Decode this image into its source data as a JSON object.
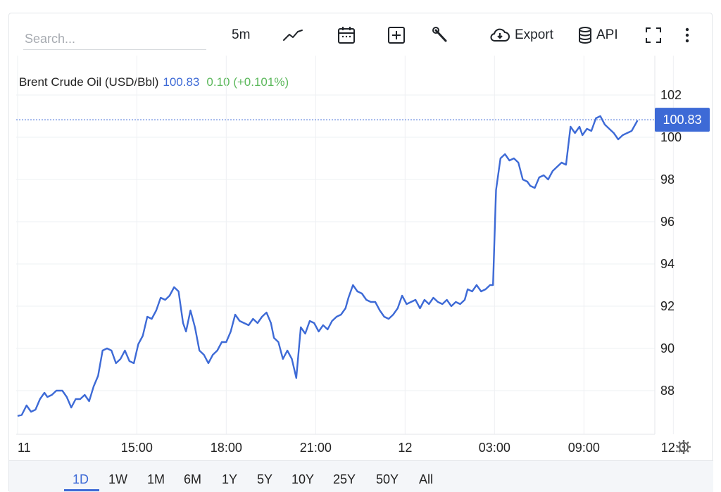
{
  "toolbar": {
    "search_placeholder": "Search...",
    "interval": "5m",
    "export_label": "Export",
    "api_label": "API",
    "icons": [
      "line-chart-icon",
      "calendar-icon",
      "add-box-icon",
      "wrench-icon",
      "cloud-download-icon",
      "database-icon",
      "fullscreen-icon",
      "more-vertical-icon"
    ]
  },
  "legend": {
    "name": "Brent Crude Oil (USD/Bbl)",
    "value": "100.83",
    "change": "0.10 (+0.101%)"
  },
  "price_tag": "100.83",
  "ranges": [
    "1D",
    "1W",
    "1M",
    "6M",
    "1Y",
    "5Y",
    "10Y",
    "25Y",
    "50Y",
    "All"
  ],
  "active_range": "1D",
  "colors": {
    "line": "#3d6ad6",
    "positive": "#5cb85c",
    "grid": "#eef0f3"
  },
  "chart_data": {
    "type": "line",
    "title": "Brent Crude Oil (USD/Bbl)",
    "ylim": [
      86,
      104
    ],
    "y_ticks": [
      88,
      90,
      92,
      94,
      96,
      98,
      100,
      102
    ],
    "x_ticks": [
      {
        "t": 0,
        "label": "11"
      },
      {
        "t": 4,
        "label": "15:00"
      },
      {
        "t": 7,
        "label": "18:00"
      },
      {
        "t": 10,
        "label": "21:00"
      },
      {
        "t": 13,
        "label": "12"
      },
      {
        "t": 16,
        "label": "03:00"
      },
      {
        "t": 19,
        "label": "09:00"
      },
      {
        "t": 22,
        "label": "12:0"
      }
    ],
    "last_value": 100.83,
    "series": [
      {
        "values": [
          [
            0.0,
            86.8
          ],
          [
            0.14,
            86.85
          ],
          [
            0.3,
            87.3
          ],
          [
            0.45,
            87.0
          ],
          [
            0.6,
            87.1
          ],
          [
            0.75,
            87.6
          ],
          [
            0.9,
            87.9
          ],
          [
            1.0,
            87.7
          ],
          [
            1.15,
            87.8
          ],
          [
            1.3,
            88.0
          ],
          [
            1.5,
            88.0
          ],
          [
            1.65,
            87.7
          ],
          [
            1.8,
            87.2
          ],
          [
            1.95,
            87.6
          ],
          [
            2.1,
            87.6
          ],
          [
            2.25,
            87.8
          ],
          [
            2.4,
            87.5
          ],
          [
            2.55,
            88.2
          ],
          [
            2.7,
            88.7
          ],
          [
            2.85,
            89.9
          ],
          [
            3.0,
            90.0
          ],
          [
            3.15,
            89.9
          ],
          [
            3.3,
            89.3
          ],
          [
            3.45,
            89.5
          ],
          [
            3.6,
            89.9
          ],
          [
            3.75,
            89.4
          ],
          [
            3.9,
            89.3
          ],
          [
            4.05,
            90.2
          ],
          [
            4.2,
            90.6
          ],
          [
            4.35,
            91.5
          ],
          [
            4.5,
            91.4
          ],
          [
            4.65,
            91.8
          ],
          [
            4.8,
            92.4
          ],
          [
            4.95,
            92.3
          ],
          [
            5.1,
            92.5
          ],
          [
            5.25,
            92.9
          ],
          [
            5.4,
            92.7
          ],
          [
            5.55,
            91.2
          ],
          [
            5.65,
            90.8
          ],
          [
            5.8,
            91.8
          ],
          [
            5.95,
            91.0
          ],
          [
            6.1,
            89.9
          ],
          [
            6.25,
            89.7
          ],
          [
            6.4,
            89.3
          ],
          [
            6.55,
            89.7
          ],
          [
            6.7,
            89.9
          ],
          [
            6.85,
            90.3
          ],
          [
            7.0,
            90.3
          ],
          [
            7.15,
            90.8
          ],
          [
            7.3,
            91.6
          ],
          [
            7.45,
            91.3
          ],
          [
            7.6,
            91.2
          ],
          [
            7.75,
            91.1
          ],
          [
            7.9,
            91.4
          ],
          [
            8.05,
            91.2
          ],
          [
            8.2,
            91.5
          ],
          [
            8.35,
            91.7
          ],
          [
            8.5,
            91.2
          ],
          [
            8.6,
            90.5
          ],
          [
            8.75,
            90.3
          ],
          [
            8.9,
            89.5
          ],
          [
            9.05,
            89.9
          ],
          [
            9.2,
            89.5
          ],
          [
            9.35,
            88.6
          ],
          [
            9.5,
            91.0
          ],
          [
            9.65,
            90.7
          ],
          [
            9.8,
            91.3
          ],
          [
            9.95,
            91.2
          ],
          [
            10.1,
            90.8
          ],
          [
            10.25,
            91.1
          ],
          [
            10.4,
            90.9
          ],
          [
            10.55,
            91.3
          ],
          [
            10.7,
            91.5
          ],
          [
            10.85,
            91.6
          ],
          [
            11.0,
            91.9
          ],
          [
            11.1,
            92.4
          ],
          [
            11.25,
            93.0
          ],
          [
            11.4,
            92.7
          ],
          [
            11.55,
            92.6
          ],
          [
            11.7,
            92.3
          ],
          [
            11.85,
            92.2
          ],
          [
            12.0,
            92.2
          ],
          [
            12.15,
            91.8
          ],
          [
            12.3,
            91.5
          ],
          [
            12.45,
            91.4
          ],
          [
            12.6,
            91.6
          ],
          [
            12.75,
            91.9
          ],
          [
            12.9,
            92.5
          ],
          [
            13.05,
            92.1
          ],
          [
            13.2,
            92.2
          ],
          [
            13.35,
            92.3
          ],
          [
            13.5,
            91.9
          ],
          [
            13.65,
            92.3
          ],
          [
            13.8,
            92.1
          ],
          [
            13.95,
            92.4
          ],
          [
            14.1,
            92.2
          ],
          [
            14.25,
            92.1
          ],
          [
            14.4,
            92.3
          ],
          [
            14.55,
            92.0
          ],
          [
            14.7,
            92.2
          ],
          [
            14.85,
            92.1
          ],
          [
            15.0,
            92.3
          ],
          [
            15.1,
            92.8
          ],
          [
            15.25,
            92.7
          ],
          [
            15.4,
            93.0
          ],
          [
            15.55,
            92.7
          ],
          [
            15.7,
            92.8
          ],
          [
            15.85,
            93.0
          ],
          [
            15.95,
            93.0
          ],
          [
            16.05,
            97.5
          ],
          [
            16.2,
            99.0
          ],
          [
            16.35,
            99.2
          ],
          [
            16.5,
            98.9
          ],
          [
            16.65,
            99.0
          ],
          [
            16.8,
            98.8
          ],
          [
            16.95,
            98.0
          ],
          [
            17.1,
            97.9
          ],
          [
            17.2,
            97.7
          ],
          [
            17.35,
            97.6
          ],
          [
            17.5,
            98.1
          ],
          [
            17.65,
            98.2
          ],
          [
            17.8,
            98.0
          ],
          [
            17.95,
            98.4
          ],
          [
            18.1,
            98.6
          ],
          [
            18.25,
            98.8
          ],
          [
            18.4,
            98.7
          ],
          [
            18.55,
            100.5
          ],
          [
            18.7,
            100.2
          ],
          [
            18.85,
            100.5
          ],
          [
            18.95,
            100.1
          ],
          [
            19.1,
            100.4
          ],
          [
            19.25,
            100.3
          ],
          [
            19.4,
            100.9
          ],
          [
            19.55,
            101.0
          ],
          [
            19.7,
            100.6
          ],
          [
            19.85,
            100.4
          ],
          [
            20.0,
            100.2
          ],
          [
            20.15,
            99.9
          ],
          [
            20.3,
            100.1
          ],
          [
            20.45,
            100.2
          ],
          [
            20.6,
            100.3
          ],
          [
            20.8,
            100.8
          ]
        ]
      }
    ]
  }
}
